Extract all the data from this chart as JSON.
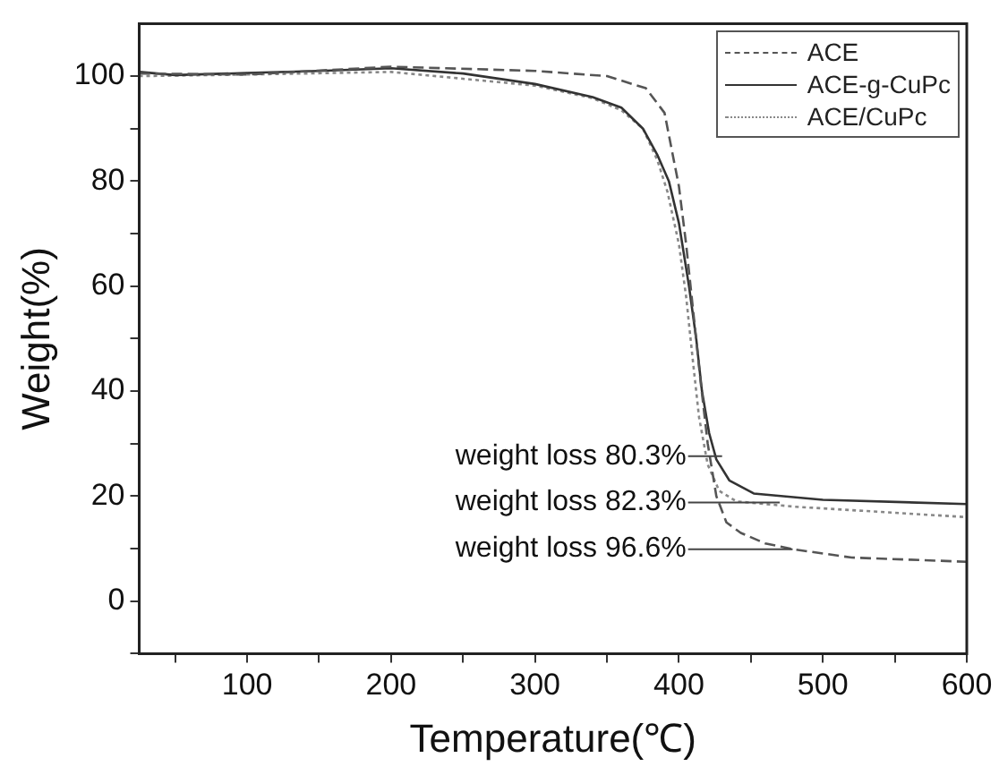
{
  "chart_data": {
    "type": "line",
    "xlabel": "Temperature(℃)",
    "ylabel": "Weight(%)",
    "xlim": [
      25,
      600
    ],
    "ylim": [
      -10,
      110
    ],
    "xticks": [
      {
        "value": 50,
        "label": null
      },
      100,
      {
        "value": 150,
        "label": null
      },
      200,
      {
        "value": 250,
        "label": null
      },
      300,
      {
        "value": 350,
        "label": null
      },
      400,
      {
        "value": 450,
        "label": null
      },
      500,
      {
        "value": 550,
        "label": null
      },
      600
    ],
    "yticks": [
      {
        "value": -10,
        "label": null
      },
      0,
      {
        "value": 10,
        "label": null
      },
      20,
      {
        "value": 30,
        "label": null
      },
      40,
      {
        "value": 50,
        "label": null
      },
      60,
      {
        "value": 70,
        "label": null
      },
      80,
      {
        "value": 90,
        "label": null
      },
      100
    ],
    "grid": false,
    "legend": "top right",
    "marker": "none",
    "series": [
      {
        "name": "ACE",
        "color": "#555555",
        "line_style": "dashed",
        "x": [
          25,
          100,
          200,
          300,
          350,
          377,
          390,
          400,
          405,
          410,
          415,
          420,
          426,
          433,
          443,
          460,
          479,
          520,
          600
        ],
        "values": [
          100.5,
          100.3,
          101.8,
          101,
          100,
          97.7,
          93,
          79,
          68,
          55,
          42,
          30,
          20,
          15,
          13,
          11,
          9.9,
          8.3,
          7.5
        ]
      },
      {
        "name": "ACE-g-CuPc",
        "color": "#333333",
        "line_style": "solid",
        "x": [
          25,
          50,
          100,
          150,
          200,
          250,
          300,
          340,
          360,
          375,
          385,
          393,
          400,
          407,
          412,
          416,
          421,
          426,
          435,
          452,
          500,
          600
        ],
        "values": [
          100.8,
          100.2,
          100.6,
          101,
          101.5,
          100.5,
          98.5,
          96,
          94,
          90,
          85,
          80,
          72,
          60,
          50,
          40,
          32,
          27,
          23,
          20.5,
          19.3,
          18.5
        ]
      },
      {
        "name": "ACE/CuPc",
        "color": "#888888",
        "line_style": "dotted",
        "x": [
          25,
          100,
          200,
          300,
          340,
          360,
          375,
          385,
          392,
          400,
          405,
          410,
          414,
          420,
          428,
          440,
          480,
          600
        ],
        "values": [
          100,
          100.3,
          100.8,
          98.2,
          95.8,
          93.5,
          90,
          84,
          78,
          68,
          58,
          45,
          35,
          26,
          21,
          19,
          18,
          16
        ]
      }
    ],
    "annotations": [
      {
        "text": "weight loss 80.3%",
        "x": 430,
        "y": 27.6
      },
      {
        "text": "weight loss 82.3%",
        "x": 470,
        "y": 18.8
      },
      {
        "text": "weight loss 96.6%",
        "x": 479,
        "y": 9.9
      }
    ]
  }
}
